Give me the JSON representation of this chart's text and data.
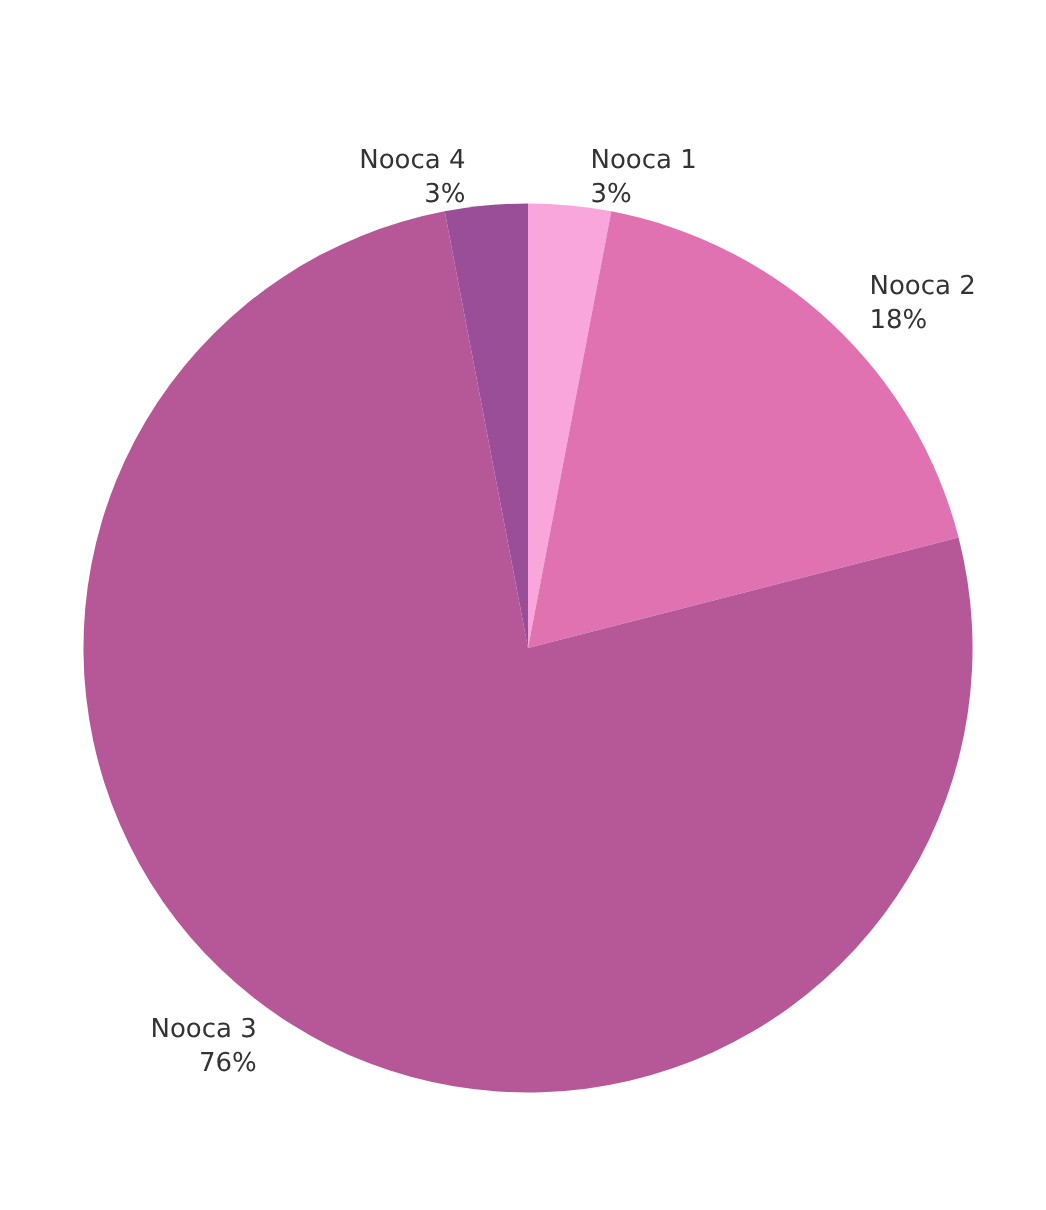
{
  "chart_data": {
    "type": "pie",
    "categories": [
      "Nooca 1",
      "Nooca 2",
      "Nooca 3",
      "Nooca 4"
    ],
    "values": [
      3,
      18,
      76,
      3
    ],
    "value_labels": [
      "3%",
      "18%",
      "76%",
      "3%"
    ],
    "colors": [
      "#f8a6dc",
      "#e072b2",
      "#b65898",
      "#9a4e97"
    ],
    "legend": false
  }
}
